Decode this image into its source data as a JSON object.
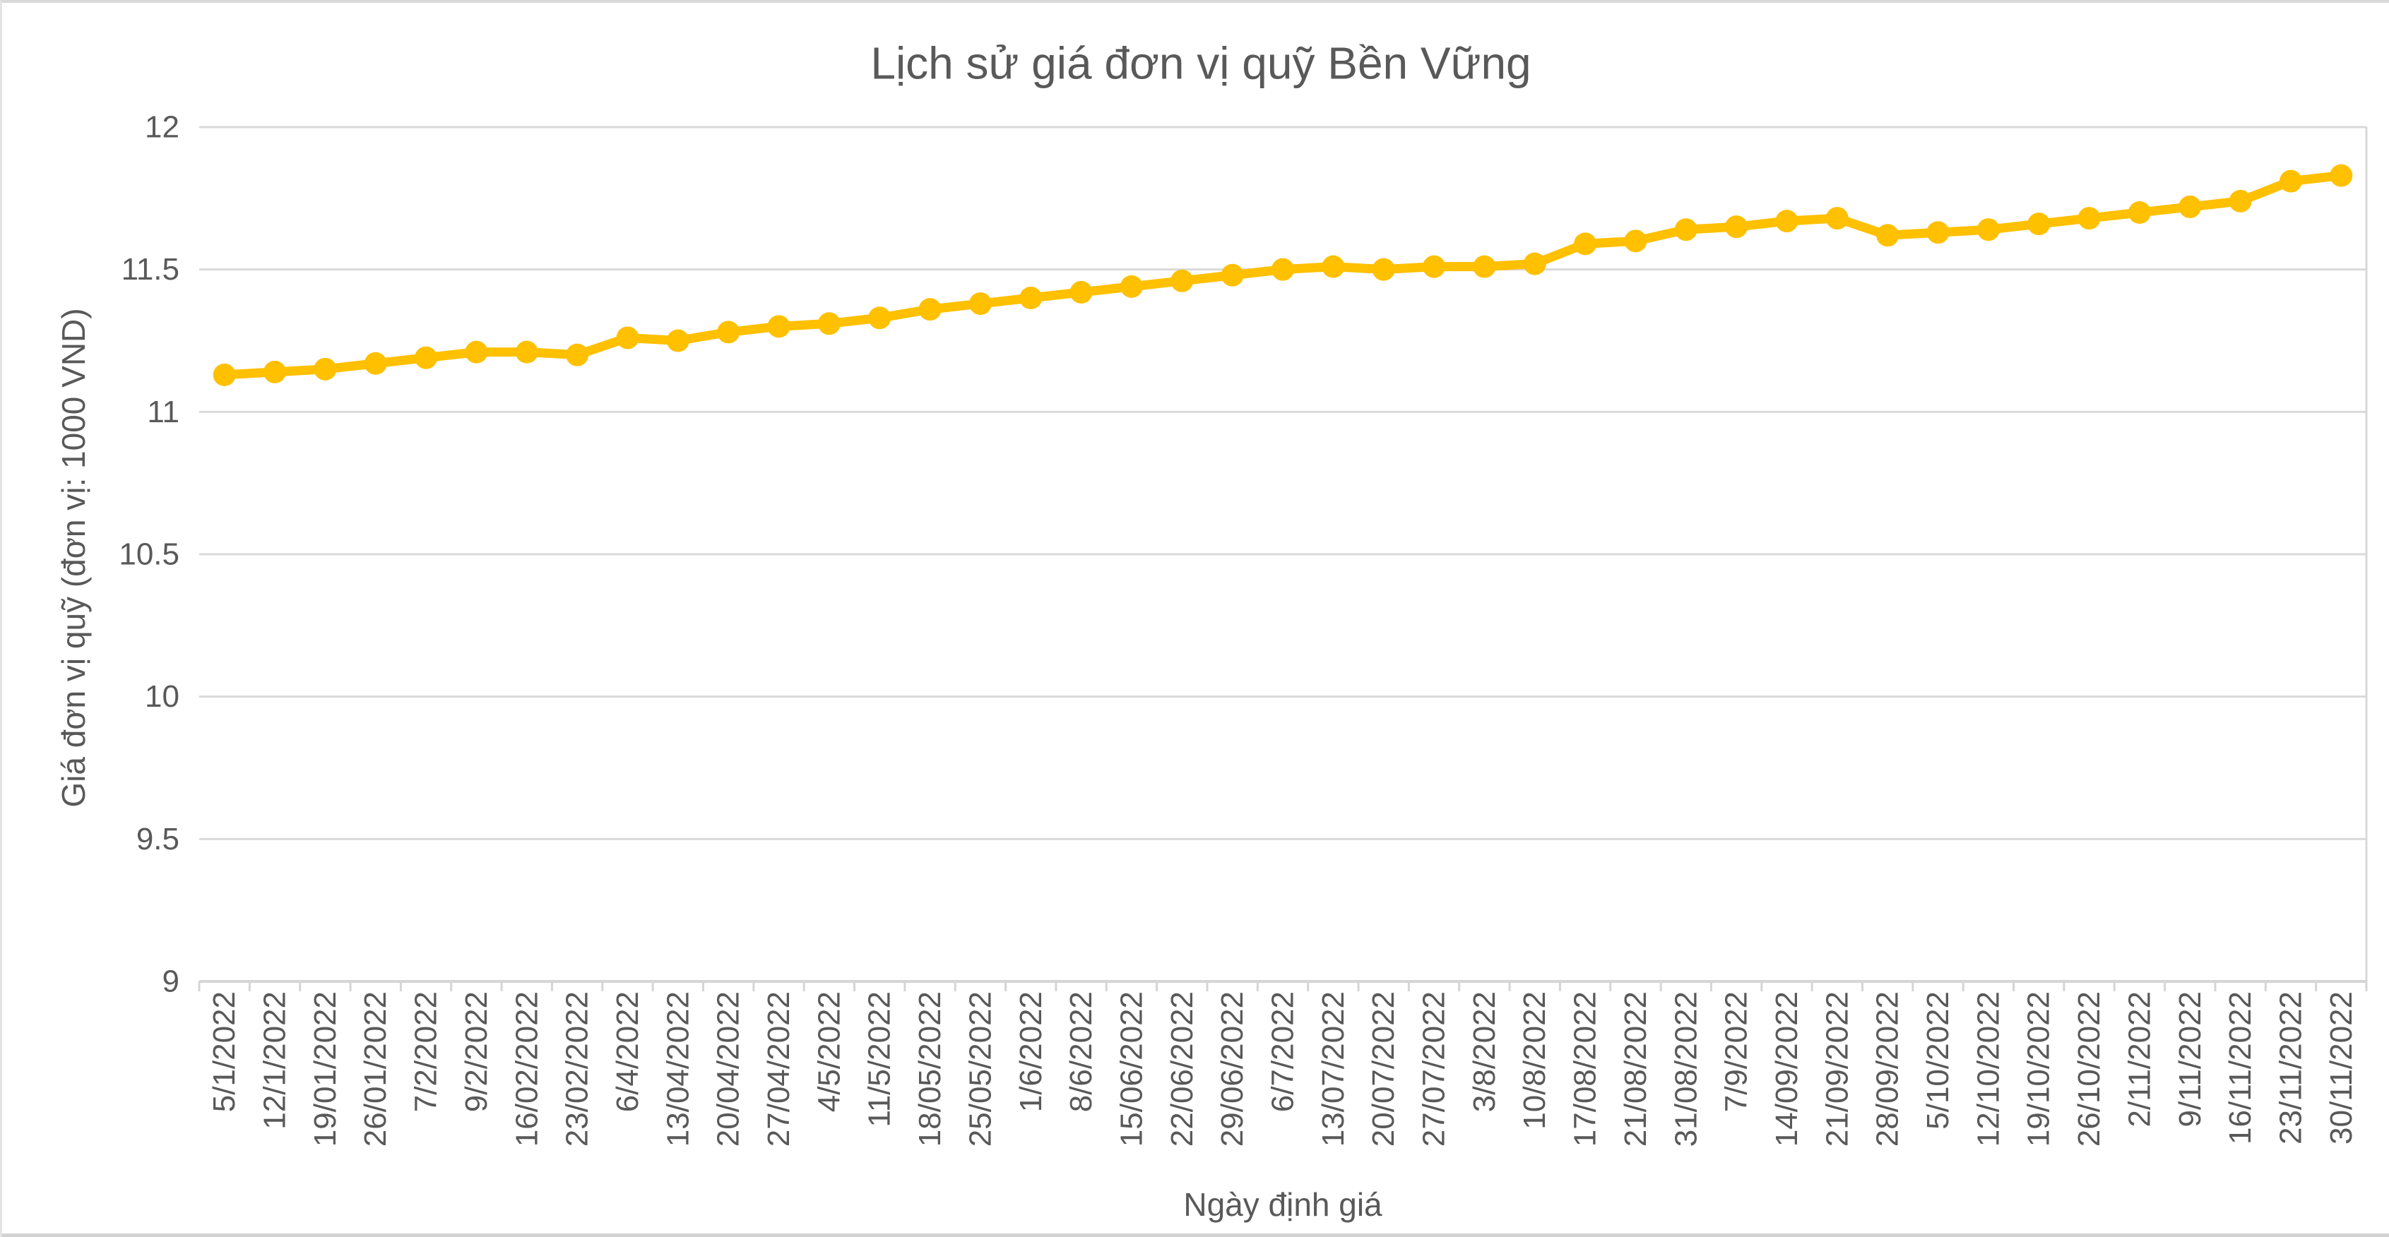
{
  "chart": {
    "title": "Lịch sử giá đơn vị quỹ Bền Vững",
    "x_axis_title": "Ngày định giá",
    "y_axis_title": "Giá đơn vị quỹ (đơn vị: 1000 VND)"
  },
  "chart_data": {
    "type": "line",
    "title": "Lịch sử giá đơn vị quỹ Bền Vững",
    "xlabel": "Ngày định giá",
    "ylabel": "Giá đơn vị quỹ (đơn vị: 1000 VND)",
    "categories": [
      "5/1/2022",
      "12/1/2022",
      "19/01/2022",
      "26/01/2022",
      "7/2/2022",
      "9/2/2022",
      "16/02/2022",
      "23/02/2022",
      "6/4/2022",
      "13/04/2022",
      "20/04/2022",
      "27/04/2022",
      "4/5/2022",
      "11/5/2022",
      "18/05/2022",
      "25/05/2022",
      "1/6/2022",
      "8/6/2022",
      "15/06/2022",
      "22/06/2022",
      "29/06/2022",
      "6/7/2022",
      "13/07/2022",
      "20/07/2022",
      "27/07/2022",
      "3/8/2022",
      "10/8/2022",
      "17/08/2022",
      "21/08/2022",
      "31/08/2022",
      "7/9/2022",
      "14/09/2022",
      "21/09/2022",
      "28/09/2022",
      "5/10/2022",
      "12/10/2022",
      "19/10/2022",
      "26/10/2022",
      "2/11/2022",
      "9/11/2022",
      "16/11/2022",
      "23/11/2022",
      "30/11/2022"
    ],
    "values": [
      11.13,
      11.14,
      11.15,
      11.17,
      11.19,
      11.21,
      11.21,
      11.2,
      11.26,
      11.25,
      11.28,
      11.3,
      11.31,
      11.33,
      11.36,
      11.38,
      11.4,
      11.42,
      11.44,
      11.46,
      11.48,
      11.5,
      11.51,
      11.5,
      11.51,
      11.51,
      11.52,
      11.59,
      11.6,
      11.64,
      11.65,
      11.67,
      11.68,
      11.62,
      11.63,
      11.64,
      11.66,
      11.68,
      11.7,
      11.72,
      11.74,
      11.81,
      11.83
    ],
    "ylim": [
      9,
      12
    ],
    "ytick_step": 0.5,
    "yticks": [
      "9",
      "9.5",
      "10",
      "10.5",
      "11",
      "11.5",
      "12"
    ],
    "grid": true,
    "legend_position": "none",
    "series_color": "#FFC000",
    "gridline_color": "#D9D9D9",
    "axis_line_color": "#D5D5D5",
    "text_color": "#595959",
    "marker": "circle"
  }
}
